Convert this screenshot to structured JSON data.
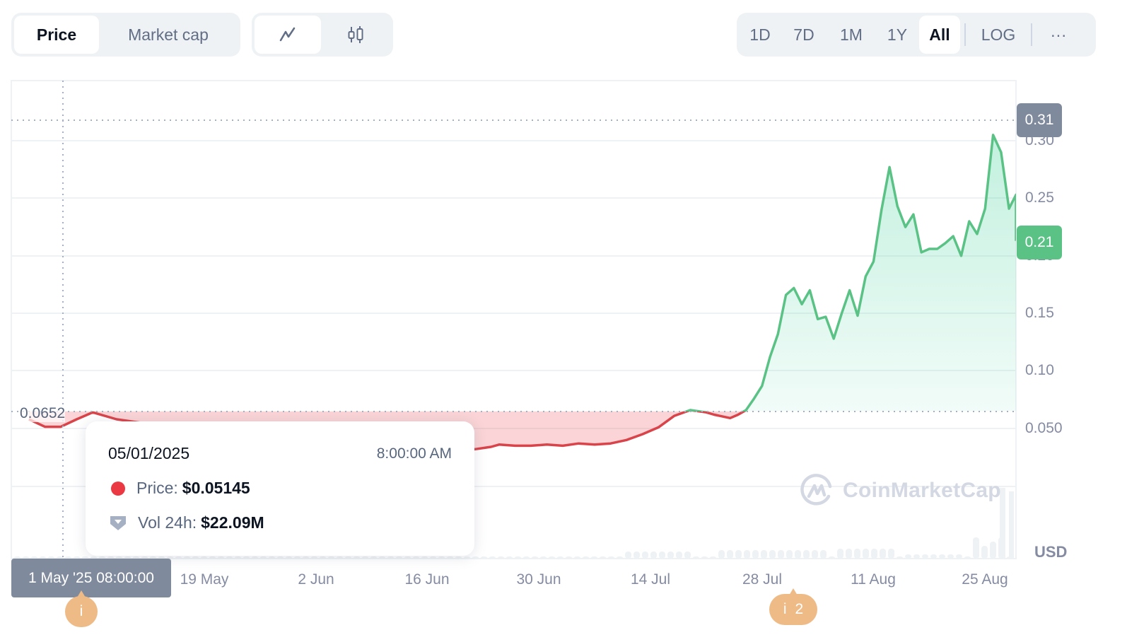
{
  "toolbar": {
    "metric_tabs": [
      {
        "label": "Price",
        "active": true
      },
      {
        "label": "Market cap",
        "active": false
      }
    ],
    "chart_type_buttons": [
      {
        "icon": "line-chart-icon",
        "active": true
      },
      {
        "icon": "candlestick-icon",
        "active": false
      }
    ],
    "range_tabs": [
      {
        "label": "1D",
        "active": false
      },
      {
        "label": "7D",
        "active": false
      },
      {
        "label": "1M",
        "active": false
      },
      {
        "label": "1Y",
        "active": false
      },
      {
        "label": "All",
        "active": true
      }
    ],
    "log_label": "LOG",
    "more_label": "···"
  },
  "chart": {
    "start_price_label": "0.0652",
    "high_badge": "0.31",
    "current_badge": "0.21",
    "currency": "USD",
    "watermark": "CoinMarketCap",
    "crosshair_label": "1 May '25 08:00:00",
    "events": [
      {
        "label": "i",
        "count": ""
      },
      {
        "label": "i",
        "count": "2"
      }
    ],
    "colors": {
      "up": "#16c784",
      "up_line": "#5ac285",
      "down": "#ea3943",
      "down_line": "#d9444a",
      "high_badge": "#808a9d",
      "current_badge": "#5ac285",
      "event_pin": "#eeba85"
    }
  },
  "tooltip": {
    "date": "05/01/2025",
    "time": "8:00:00 AM",
    "price_label": "Price:",
    "price_value": "$0.05145",
    "vol_label": "Vol 24h:",
    "vol_value": "$22.09M"
  },
  "chart_data": {
    "type": "area",
    "title": "",
    "xlabel": "",
    "ylabel": "USD",
    "ylim": [
      0,
      0.34
    ],
    "y_ticks": [
      "0.050",
      "0.10",
      "0.15",
      "0.20",
      "0.25",
      "0.30"
    ],
    "x_ticks": [
      "19 May",
      "2 Jun",
      "16 Jun",
      "30 Jun",
      "14 Jul",
      "28 Jul",
      "11 Aug",
      "25 Aug"
    ],
    "baseline": 0.0652,
    "high": 0.31,
    "current": 0.21,
    "grid": true,
    "series": [
      {
        "name": "Price",
        "x": [
          "2025-04-27",
          "2025-04-29",
          "2025-05-01",
          "2025-05-03",
          "2025-05-05",
          "2025-05-08",
          "2025-05-11",
          "2025-05-14",
          "2025-05-17",
          "2025-05-20",
          "2025-05-23",
          "2025-05-26",
          "2025-05-29",
          "2025-06-01",
          "2025-06-04",
          "2025-06-07",
          "2025-06-10",
          "2025-06-13",
          "2025-06-16",
          "2025-06-19",
          "2025-06-22",
          "2025-06-24",
          "2025-06-25",
          "2025-06-27",
          "2025-06-29",
          "2025-07-01",
          "2025-07-03",
          "2025-07-05",
          "2025-07-07",
          "2025-07-09",
          "2025-07-11",
          "2025-07-13",
          "2025-07-15",
          "2025-07-17",
          "2025-07-19",
          "2025-07-21",
          "2025-07-22",
          "2025-07-24",
          "2025-07-25",
          "2025-07-26",
          "2025-07-27",
          "2025-07-28",
          "2025-07-29",
          "2025-07-30",
          "2025-07-31",
          "2025-08-01",
          "2025-08-02",
          "2025-08-03",
          "2025-08-04",
          "2025-08-05",
          "2025-08-06",
          "2025-08-07",
          "2025-08-08",
          "2025-08-09",
          "2025-08-10",
          "2025-08-11",
          "2025-08-12",
          "2025-08-13",
          "2025-08-14",
          "2025-08-15",
          "2025-08-16",
          "2025-08-17",
          "2025-08-18",
          "2025-08-19",
          "2025-08-20",
          "2025-08-21",
          "2025-08-22",
          "2025-08-23",
          "2025-08-24",
          "2025-08-25",
          "2025-08-26",
          "2025-08-27",
          "2025-08-28",
          "2025-08-29",
          "2025-08-30"
        ],
        "values": [
          0.058,
          0.0515,
          0.0515,
          0.058,
          0.064,
          0.058,
          0.055,
          0.052,
          0.05,
          0.048,
          0.046,
          0.044,
          0.042,
          0.04,
          0.038,
          0.037,
          0.036,
          0.035,
          0.033,
          0.03,
          0.032,
          0.034,
          0.036,
          0.035,
          0.035,
          0.036,
          0.035,
          0.037,
          0.036,
          0.037,
          0.04,
          0.045,
          0.051,
          0.061,
          0.066,
          0.064,
          0.062,
          0.059,
          0.062,
          0.066,
          0.076,
          0.087,
          0.112,
          0.132,
          0.166,
          0.172,
          0.158,
          0.17,
          0.145,
          0.147,
          0.128,
          0.15,
          0.17,
          0.148,
          0.182,
          0.195,
          0.24,
          0.277,
          0.243,
          0.225,
          0.236,
          0.203,
          0.206,
          0.206,
          0.211,
          0.217,
          0.2,
          0.23,
          0.219,
          0.241,
          0.305,
          0.29,
          0.241,
          0.253,
          0.213
        ]
      }
    ],
    "volume_note": "faint volume bars along bottom"
  }
}
